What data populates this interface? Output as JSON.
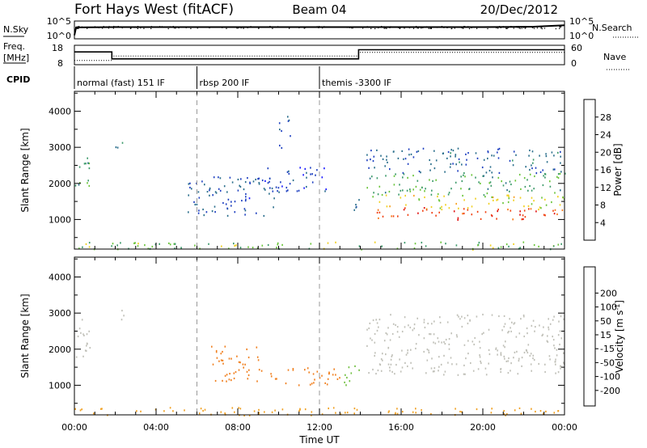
{
  "header": {
    "station": "Fort Hays West (fitACF)",
    "beam": "Beam 04",
    "date": "20/Dec/2012"
  },
  "colors": {
    "power_scale": [
      "#1a1aff",
      "#1e40c0",
      "#2a6e8c",
      "#3c9a6a",
      "#6ac43a",
      "#f0d020",
      "#f8a020",
      "#f87818",
      "#f04010",
      "#e01010"
    ],
    "velocity_scale": [
      "#2020c0",
      "#3050b0",
      "#2e8a50",
      "#70c040",
      "#c0c0b8",
      "#c0c0b8",
      "#f0a020",
      "#f08020",
      "#f05010",
      "#e01010"
    ]
  },
  "chart_data": [
    {
      "type": "line",
      "panel": "noise",
      "left_label": "N.Sky",
      "right_label": "N.Search",
      "left_ticks": [
        "10^5",
        "10^0"
      ],
      "right_ticks": [
        "10^5",
        "10^0"
      ],
      "series": [
        {
          "name": "N.Sky",
          "style": "solid",
          "x": [
            "00:00",
            "00:05",
            "02:00",
            "04:00",
            "08:00",
            "12:00",
            "16:00",
            "20:00",
            "22:30",
            "24:00"
          ],
          "y": [
            1.0,
            3.2,
            3.3,
            3.3,
            3.3,
            3.3,
            3.3,
            3.3,
            3.4,
            3.8
          ]
        }
      ]
    },
    {
      "type": "line",
      "panel": "frequency",
      "left_label": "Freq.",
      "left_unit": "[MHz]",
      "right_label": "Nave",
      "ylim_left": [
        8,
        18
      ],
      "ylim_right": [
        0,
        60
      ],
      "left_ticks": [
        "18",
        "8"
      ],
      "right_ticks": [
        "60",
        "0"
      ],
      "series": [
        {
          "name": "Freq.",
          "style": "solid",
          "x": [
            "00:00",
            "01:50",
            "01:50",
            "13:55",
            "13:55",
            "24:00"
          ],
          "y": [
            14.6,
            14.6,
            11.0,
            11.0,
            15.7,
            15.7
          ]
        },
        {
          "name": "Nave",
          "style": "dotted",
          "x": [
            "00:00",
            "01:50",
            "01:50",
            "13:55",
            "13:55",
            "24:00"
          ],
          "y": [
            13,
            13,
            27,
            27,
            38,
            38
          ]
        }
      ]
    },
    {
      "type": "table",
      "panel": "cpid",
      "left_label": "CPID",
      "x": [
        "00:00",
        "06:00",
        "12:00"
      ],
      "labels": [
        "normal (fast) 151 IF",
        "rbsp 200 IF",
        "themis -3300 IF"
      ]
    },
    {
      "type": "heatmap",
      "panel": "power",
      "ylabel": "Slant Range [km]",
      "xlabel": "",
      "ylim": [
        180,
        4550
      ],
      "yticks": [
        1000,
        2000,
        3000,
        4000
      ],
      "colorbar_label": "Power [dB]",
      "colorbar_ticks": [
        4,
        8,
        12,
        16,
        20,
        24,
        28
      ],
      "colorbar_range": [
        0,
        32
      ],
      "regions": [
        {
          "x": [
            0.0,
            0.8
          ],
          "y": [
            1800,
            2750
          ],
          "value": 11
        },
        {
          "x": [
            1.9,
            2.4
          ],
          "y": [
            2800,
            3200
          ],
          "value": 8
        },
        {
          "x": [
            5.5,
            10.0
          ],
          "y": [
            1100,
            2200
          ],
          "value": 6
        },
        {
          "x": [
            9.0,
            12.5
          ],
          "y": [
            1800,
            2500
          ],
          "value": 5
        },
        {
          "x": [
            10.0,
            10.6
          ],
          "y": [
            3000,
            3900
          ],
          "value": 6
        },
        {
          "x": [
            13.5,
            14.0
          ],
          "y": [
            1000,
            1600
          ],
          "value": 8
        },
        {
          "x": [
            14.3,
            24.0
          ],
          "y": [
            2300,
            3000
          ],
          "value": 7
        },
        {
          "x": [
            14.3,
            24.0
          ],
          "y": [
            1700,
            2300
          ],
          "value": 12
        },
        {
          "x": [
            14.5,
            24.0
          ],
          "y": [
            1300,
            1700
          ],
          "value": 17
        },
        {
          "x": [
            14.8,
            24.0
          ],
          "y": [
            1000,
            1350
          ],
          "value": 27
        },
        {
          "x": [
            0.0,
            24.0
          ],
          "y": [
            180,
            400
          ],
          "value": 14
        }
      ]
    },
    {
      "type": "heatmap",
      "panel": "velocity",
      "ylabel": "Slant Range [km]",
      "xlabel": "Time UT",
      "ylim": [
        180,
        4550
      ],
      "yticks": [
        1000,
        2000,
        3000,
        4000
      ],
      "xticks": [
        "00:00",
        "04:00",
        "08:00",
        "12:00",
        "16:00",
        "20:00",
        "00:00"
      ],
      "colorbar_label": "Velocity [m s",
      "colorbar_label_sup": "-1",
      "colorbar_label_end": "]",
      "colorbar_ticks": [
        -200,
        -100,
        -50,
        -15,
        15,
        50,
        100,
        200
      ],
      "regions": [
        {
          "x": [
            0.0,
            0.8
          ],
          "y": [
            1800,
            3000
          ],
          "value": 0
        },
        {
          "x": [
            1.9,
            2.4
          ],
          "y": [
            2800,
            3200
          ],
          "value": 0
        },
        {
          "x": [
            6.5,
            9.0
          ],
          "y": [
            1100,
            2100
          ],
          "value": -70
        },
        {
          "x": [
            9.0,
            13.0
          ],
          "y": [
            1000,
            1500
          ],
          "value": -60
        },
        {
          "x": [
            13.2,
            14.0
          ],
          "y": [
            900,
            1600
          ],
          "value": 30
        },
        {
          "x": [
            14.3,
            24.0
          ],
          "y": [
            1300,
            2400
          ],
          "value": 0
        },
        {
          "x": [
            14.3,
            24.0
          ],
          "y": [
            2400,
            3000
          ],
          "value": 0
        },
        {
          "x": [
            0.0,
            24.0
          ],
          "y": [
            180,
            400
          ],
          "value": -40
        }
      ]
    }
  ]
}
